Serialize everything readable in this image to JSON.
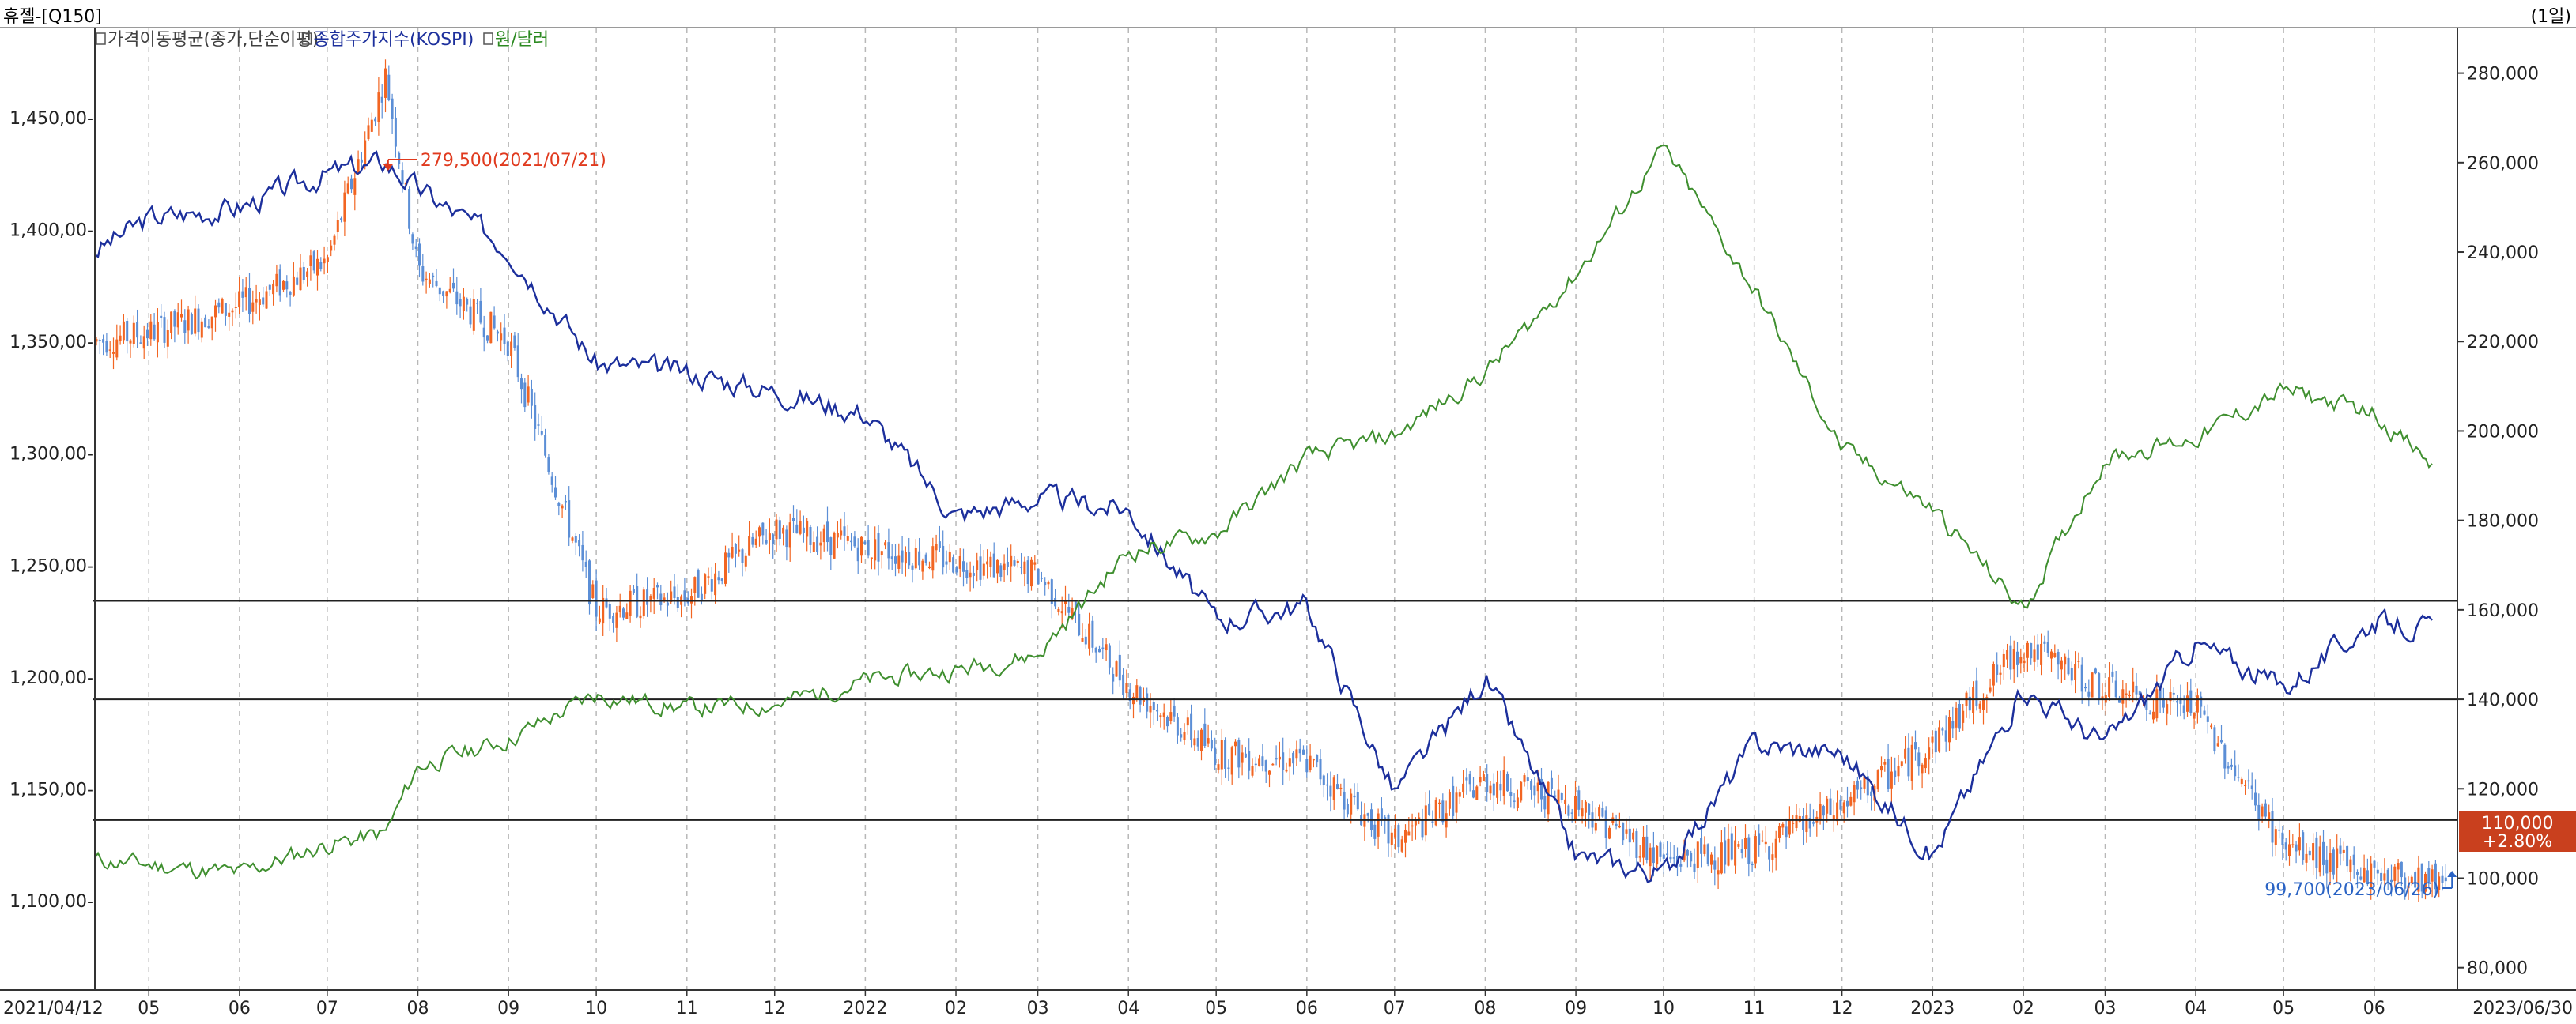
{
  "window": {
    "title": "휴젤-[Q150]",
    "period": "(1일)"
  },
  "legend": [
    {
      "label": "가격이동평균(종가,단순이평)",
      "color": "#404040"
    },
    {
      "label": "종합주가지수(KOSPI)",
      "color": "#1c2f9c"
    },
    {
      "label": "원/달러",
      "color": "#2c8a21"
    }
  ],
  "colors": {
    "up": "#f26522",
    "down": "#5b8ed6",
    "kospi": "#1c2f9c",
    "fx": "#3f8f2f",
    "grid": "#b8b8b8",
    "annot_high": "#e03a1e",
    "annot_low": "#2a63c4",
    "price_badge": "#c9401e"
  },
  "chart_data": {
    "type": "line",
    "x": [
      "2021-04-12",
      "2021-05-01",
      "2021-06-01",
      "2021-07-01",
      "2021-07-21",
      "2021-08-01",
      "2021-09-01",
      "2021-10-01",
      "2021-11-01",
      "2021-12-01",
      "2022-01-01",
      "2022-02-01",
      "2022-03-01",
      "2022-04-01",
      "2022-05-01",
      "2022-06-01",
      "2022-07-01",
      "2022-08-01",
      "2022-09-01",
      "2022-10-01",
      "2022-11-01",
      "2022-12-01",
      "2023-01-01",
      "2023-02-01",
      "2023-03-01",
      "2023-04-01",
      "2023-05-01",
      "2023-06-01",
      "2023-06-26",
      "2023-06-30"
    ],
    "left_axis": {
      "ticks": [
        "1,450,00-",
        "1,400,00-",
        "1,350,00-",
        "1,300,00-",
        "1,250,00-",
        "1,200,00-",
        "1,150,00-",
        "1,100,00-"
      ],
      "range": [
        1060,
        1490
      ]
    },
    "right_axis": {
      "ticks": [
        "280,000",
        "260,000",
        "240,000",
        "220,000",
        "200,000",
        "180,000",
        "160,000",
        "140,000",
        "120,000",
        "100,000",
        "80,000"
      ],
      "range": [
        75000,
        290000
      ]
    },
    "x_tick_labels": [
      "2021/04/12",
      "05",
      "06",
      "07",
      "08",
      "09",
      "10",
      "11",
      "12",
      "2022",
      "02",
      "03",
      "04",
      "05",
      "06",
      "07",
      "08",
      "09",
      "10",
      "11",
      "12",
      "2023",
      "02",
      "03",
      "04",
      "05",
      "06",
      "2023/06/30"
    ],
    "series": [
      {
        "name": "가격이동평균(종가,단순이평)",
        "axis": "right",
        "values": [
          220000,
          222000,
          228000,
          238000,
          279500,
          236000,
          220000,
          160000,
          163000,
          178000,
          174000,
          171000,
          168000,
          143000,
          128000,
          126000,
          108000,
          122000,
          117000,
          104000,
          106000,
          116000,
          130000,
          152000,
          142000,
          138000,
          107000,
          101000,
          99700,
          110000
        ]
      },
      {
        "name": "종합주가지수(KOSPI)",
        "axis": "left",
        "values": [
          1390,
          1405,
          1410,
          1425,
          1430,
          1418,
          1392,
          1340,
          1336,
          1328,
          1318,
          1272,
          1280,
          1275,
          1225,
          1232,
          1148,
          1200,
          1120,
          1112,
          1170,
          1166,
          1120,
          1195,
          1170,
          1215,
          1195,
          1225,
          1220,
          1225
        ]
      },
      {
        "name": "원/달러",
        "axis": "left",
        "values": [
          1118,
          1116,
          1112,
          1125,
          1130,
          1160,
          1172,
          1192,
          1186,
          1188,
          1198,
          1203,
          1210,
          1256,
          1264,
          1298,
          1308,
          1336,
          1380,
          1436,
          1373,
          1302,
          1275,
          1230,
          1298,
          1307,
          1328,
          1318,
          1288,
          1323
        ]
      }
    ],
    "horizontal_lines_right_axis": [
      162000,
      140000,
      113000
    ],
    "annotations": [
      {
        "text": "279,500(2021/07/21)",
        "kind": "high",
        "value": 279500,
        "date": "2021-07-21"
      },
      {
        "text": "99,700(2023/06/26)",
        "kind": "low",
        "value": 99700,
        "date": "2023-06-26"
      }
    ],
    "current_price": {
      "value": "110,000",
      "change": "+2.80%"
    }
  }
}
